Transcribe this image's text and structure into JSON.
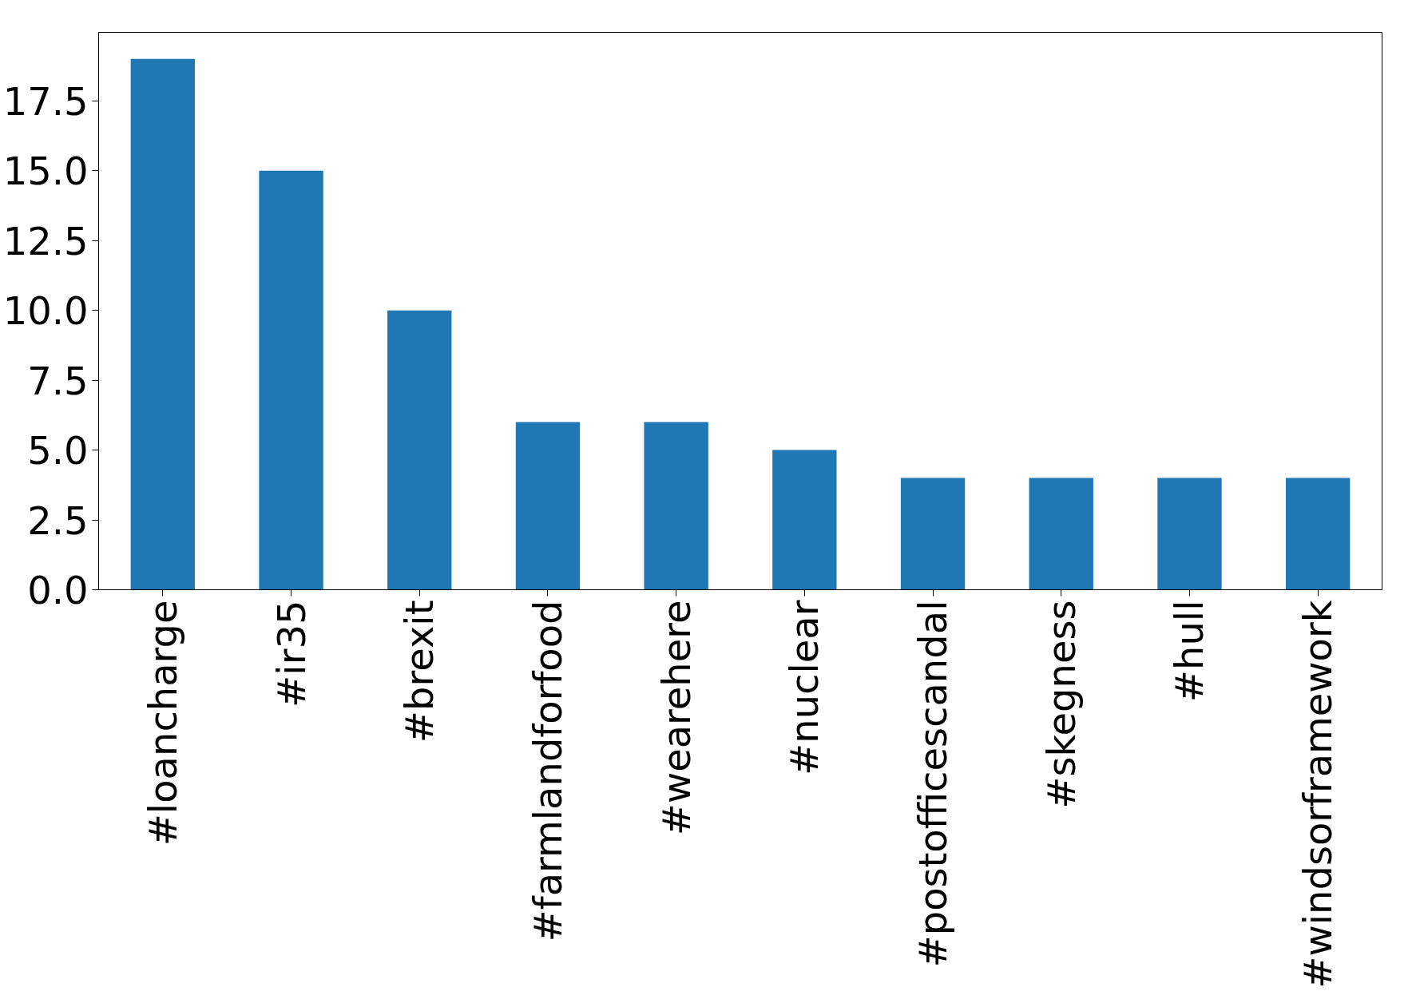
{
  "chart_data": {
    "type": "bar",
    "categories": [
      "#loancharge",
      "#ir35",
      "#brexit",
      "#farmlandforfood",
      "#wearehere",
      "#nuclear",
      "#postofficescandal",
      "#skegness",
      "#hull",
      "#windsorframework"
    ],
    "values": [
      19,
      15,
      10,
      6,
      6,
      5,
      4,
      4,
      4,
      4
    ],
    "color": "#1f77b4",
    "ylim": [
      0,
      19.95
    ],
    "yticks": [
      {
        "value": 0,
        "label": "0.0"
      },
      2.5,
      {
        "value": 5,
        "label": "5.0"
      },
      7.5,
      {
        "value": 10,
        "label": "10.0"
      },
      12.5,
      {
        "value": 15,
        "label": "15.0"
      },
      17.5
    ]
  }
}
